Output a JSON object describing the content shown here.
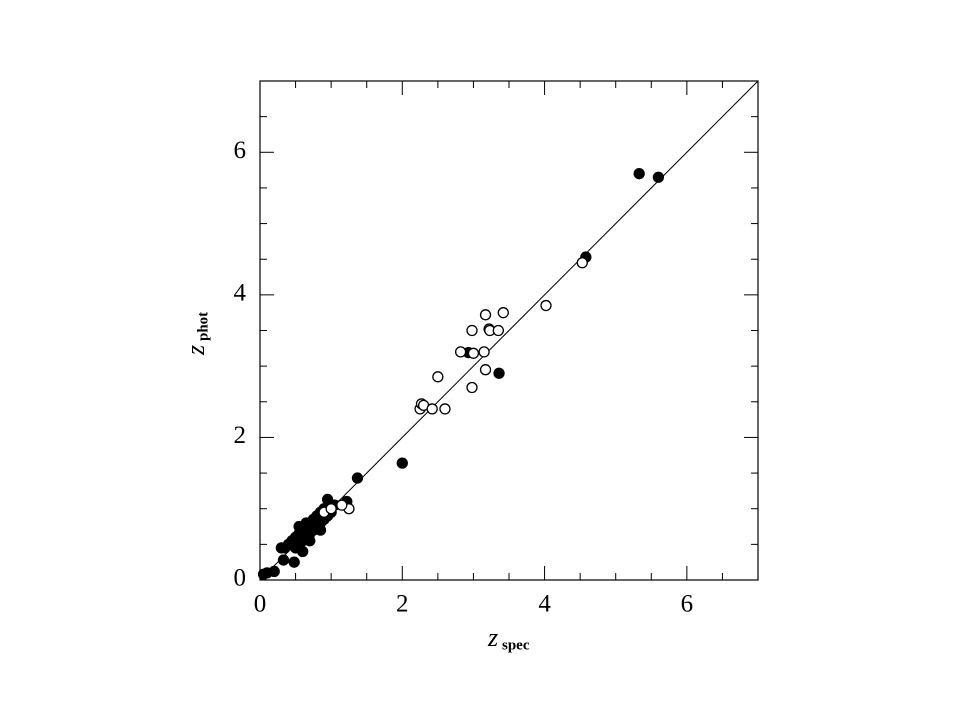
{
  "chart_data": {
    "type": "scatter",
    "x_label": {
      "text": "z",
      "subscript": "spec"
    },
    "y_label": {
      "text": "z",
      "subscript": "phot"
    },
    "xlim": [
      0,
      7
    ],
    "ylim": [
      0,
      7
    ],
    "xticks": [
      0,
      2,
      4,
      6
    ],
    "yticks": [
      0,
      2,
      4,
      6
    ],
    "minor_ticks": [
      0.5,
      1,
      1.5,
      2.5,
      3,
      3.5,
      4.5,
      5,
      5.5,
      6.5
    ],
    "identity_line": true,
    "series": [
      {
        "marker": "filled",
        "color": "#000000",
        "x": [
          5.33,
          5.6,
          4.58,
          2.93,
          3.36,
          2.0,
          1.37,
          1.22,
          0.95,
          1.05,
          0.9,
          0.85,
          0.8,
          0.75,
          0.7,
          0.65,
          0.6,
          0.55,
          0.5,
          0.55,
          0.5,
          0.45,
          0.4,
          0.35,
          0.3,
          0.6,
          0.65,
          0.7,
          0.75,
          0.8,
          0.85,
          0.9,
          0.95,
          1.0,
          0.48,
          0.33,
          0.1,
          0.05,
          0.2,
          0.55,
          0.6,
          0.85,
          0.7
        ],
        "values": [
          5.7,
          5.65,
          4.53,
          3.19,
          2.9,
          1.64,
          1.43,
          1.1,
          1.13,
          1.05,
          1.0,
          0.95,
          0.9,
          0.85,
          0.75,
          0.8,
          0.7,
          0.65,
          0.6,
          0.5,
          0.45,
          0.55,
          0.5,
          0.45,
          0.45,
          0.55,
          0.6,
          0.65,
          0.7,
          0.75,
          0.8,
          0.85,
          0.9,
          0.95,
          0.25,
          0.28,
          0.1,
          0.08,
          0.12,
          0.75,
          0.4,
          0.7,
          0.55
        ]
      },
      {
        "marker": "open",
        "color": "#000000",
        "x": [
          4.53,
          4.02,
          3.42,
          3.17,
          3.22,
          2.98,
          3.23,
          3.35,
          2.82,
          3.0,
          3.15,
          3.17,
          2.98,
          2.5,
          2.25,
          2.27,
          2.3,
          2.42,
          2.6,
          1.25,
          1.15,
          0.9,
          1.0
        ],
        "values": [
          4.45,
          3.85,
          3.75,
          3.72,
          3.52,
          3.5,
          3.5,
          3.5,
          3.2,
          3.18,
          3.2,
          2.95,
          2.7,
          2.85,
          2.4,
          2.47,
          2.45,
          2.4,
          2.4,
          1.0,
          1.05,
          0.95,
          1.0
        ]
      }
    ]
  }
}
